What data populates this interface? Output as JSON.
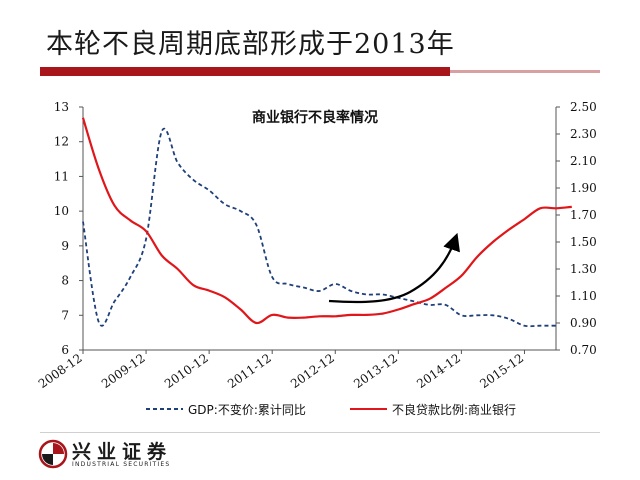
{
  "slide": {
    "title": "本轮不良周期底部形成于2013年",
    "accent_color": "#a8161b",
    "logo": {
      "name": "兴业证券",
      "subtitle": "INDUSTRIAL SECURITIES",
      "icon": "industrial-securities-logo-icon"
    }
  },
  "chart_data": {
    "type": "line",
    "title": "商业银行不良率情况",
    "x_ticks": [
      "2008-12",
      "2009-12",
      "2010-12",
      "2011-12",
      "2012-12",
      "2013-12",
      "2014-12",
      "2015-12"
    ],
    "x_range": [
      "2008-12",
      "2016-06"
    ],
    "y_left": {
      "ticks": [
        "6",
        "7",
        "8",
        "9",
        "10",
        "11",
        "12",
        "13"
      ],
      "range": [
        6,
        13
      ]
    },
    "y_right": {
      "ticks": [
        "0.70",
        "0.90",
        "1.10",
        "1.30",
        "1.50",
        "1.70",
        "1.90",
        "2.10",
        "2.30",
        "2.50"
      ],
      "range": [
        0.7,
        2.5
      ]
    },
    "grid": false,
    "legend_position": "bottom",
    "series": [
      {
        "name": "GDP:不变价:累计同比",
        "axis": "left",
        "color": "#1f3f7a",
        "style": "dashed",
        "points": [
          [
            "2008-12",
            9.7
          ],
          [
            "2009-03",
            6.8
          ],
          [
            "2009-06",
            7.4
          ],
          [
            "2009-09",
            8.1
          ],
          [
            "2009-12",
            9.2
          ],
          [
            "2010-03",
            12.3
          ],
          [
            "2010-06",
            11.4
          ],
          [
            "2010-09",
            10.9
          ],
          [
            "2010-12",
            10.6
          ],
          [
            "2011-03",
            10.2
          ],
          [
            "2011-06",
            10.0
          ],
          [
            "2011-09",
            9.6
          ],
          [
            "2011-12",
            8.1
          ],
          [
            "2012-03",
            7.9
          ],
          [
            "2012-06",
            7.8
          ],
          [
            "2012-09",
            7.7
          ],
          [
            "2012-12",
            7.9
          ],
          [
            "2013-03",
            7.7
          ],
          [
            "2013-06",
            7.6
          ],
          [
            "2013-09",
            7.6
          ],
          [
            "2013-12",
            7.5
          ],
          [
            "2014-03",
            7.4
          ],
          [
            "2014-06",
            7.3
          ],
          [
            "2014-09",
            7.3
          ],
          [
            "2014-12",
            7.0
          ],
          [
            "2015-03",
            7.0
          ],
          [
            "2015-06",
            7.0
          ],
          [
            "2015-09",
            6.9
          ],
          [
            "2015-12",
            6.7
          ],
          [
            "2016-03",
            6.7
          ],
          [
            "2016-06",
            6.7
          ]
        ]
      },
      {
        "name": "不良贷款比例:商业银行",
        "axis": "right",
        "color": "#e0161a",
        "style": "solid",
        "points": [
          [
            "2008-12",
            2.42
          ],
          [
            "2009-03",
            2.04
          ],
          [
            "2009-06",
            1.77
          ],
          [
            "2009-09",
            1.66
          ],
          [
            "2009-12",
            1.58
          ],
          [
            "2010-03",
            1.4
          ],
          [
            "2010-06",
            1.3
          ],
          [
            "2010-09",
            1.18
          ],
          [
            "2010-12",
            1.14
          ],
          [
            "2011-03",
            1.09
          ],
          [
            "2011-06",
            1.0
          ],
          [
            "2011-09",
            0.9
          ],
          [
            "2011-12",
            0.96
          ],
          [
            "2012-03",
            0.94
          ],
          [
            "2012-06",
            0.94
          ],
          [
            "2012-09",
            0.95
          ],
          [
            "2012-12",
            0.95
          ],
          [
            "2013-03",
            0.96
          ],
          [
            "2013-06",
            0.96
          ],
          [
            "2013-09",
            0.97
          ],
          [
            "2013-12",
            1.0
          ],
          [
            "2014-03",
            1.04
          ],
          [
            "2014-06",
            1.08
          ],
          [
            "2014-09",
            1.16
          ],
          [
            "2014-12",
            1.25
          ],
          [
            "2015-03",
            1.39
          ],
          [
            "2015-06",
            1.5
          ],
          [
            "2015-09",
            1.59
          ],
          [
            "2015-12",
            1.67
          ],
          [
            "2016-03",
            1.75
          ],
          [
            "2016-06",
            1.75
          ],
          [
            "2016-09",
            1.76
          ]
        ]
      }
    ],
    "annotation": {
      "type": "arrow",
      "color": "#000000",
      "description_ref": "upturn"
    }
  }
}
